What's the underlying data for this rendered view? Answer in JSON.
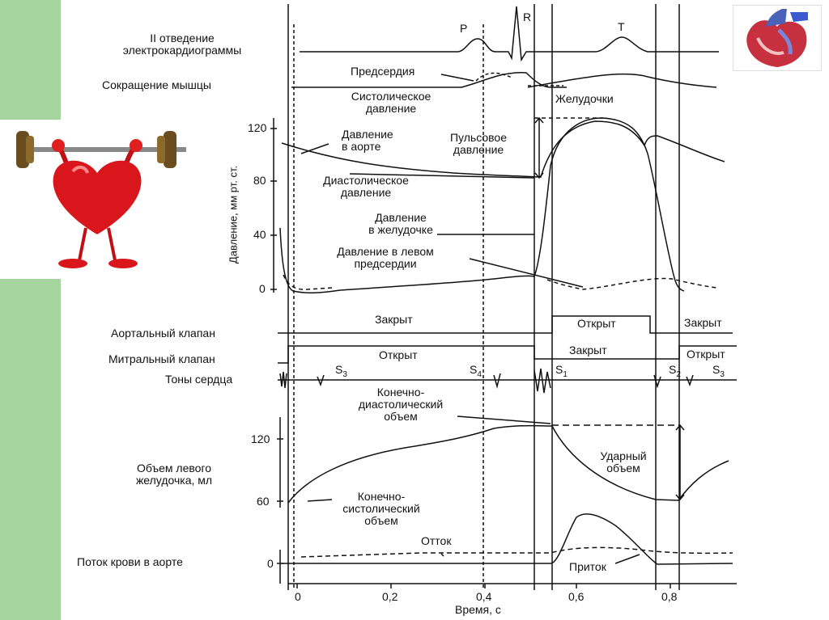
{
  "left_labels": {
    "ecg": "II отведение\nэлектрокардиограммы",
    "contraction": "Сокращение мышцы",
    "aortic_valve": "Аортальный клапан",
    "mitral_valve": "Митральный клапан",
    "heart_sounds": "Тоны сердца",
    "lv_volume": "Объем левого\nжелудочка, мл",
    "aortic_flow": "Поток крови в аорте"
  },
  "ecg_waves": {
    "p": "P",
    "r": "R",
    "t": "T"
  },
  "contraction_labels": {
    "atria": "Предсердия",
    "systolic": "Систолическое\nдавление",
    "ventricles": "Желудочки"
  },
  "pressure": {
    "ylabel": "Давление, мм рт. ст.",
    "ticks": [
      "120",
      "80",
      "40",
      "0"
    ],
    "aortic": "Давление\nв аорте",
    "pulse": "Пульсовое\nдавление",
    "diastolic": "Диастолическое\nдавление",
    "ventricular": "Давление\nв желудочке",
    "left_atrial": "Давление в левом\nпредсердии"
  },
  "valves": {
    "aortic_closed_1": "Закрыт",
    "aortic_open": "Открыт",
    "aortic_closed_2": "Закрыт",
    "mitral_open_1": "Открыт",
    "mitral_closed": "Закрыт",
    "mitral_open_2": "Открыт"
  },
  "sounds": {
    "s3a": "S",
    "s3a_sub": "3",
    "s4": "S",
    "s4_sub": "4",
    "s1": "S",
    "s1_sub": "1",
    "s2": "S",
    "s2_sub": "2",
    "s3b": "S",
    "s3b_sub": "3"
  },
  "volume": {
    "ticks": [
      "120",
      "60"
    ],
    "edv": "Конечно-\nдиастолический\nобъем",
    "stroke": "Ударный\nобъем",
    "esv": "Конечно-\nсистолический\nобъем"
  },
  "flow": {
    "tick": "0",
    "outflow": "Отток",
    "inflow": "Приток"
  },
  "time_axis": {
    "ticks": [
      "0",
      "0,2",
      "0,4",
      "0,6",
      "0,8"
    ],
    "label": "Время, с"
  },
  "colors": {
    "green": "#a6d49f",
    "heart_red": "#d8161b",
    "line": "#111111"
  }
}
